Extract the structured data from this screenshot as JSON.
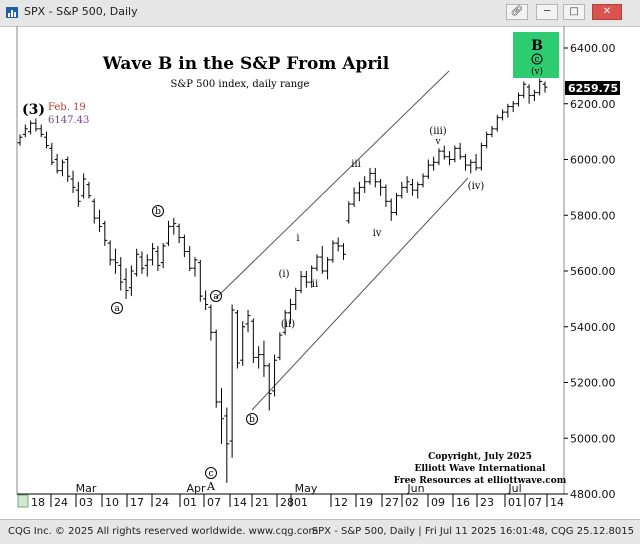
{
  "window": {
    "title": "SPX - S&P 500, Daily",
    "buttons": [
      "link-icon",
      "minimize",
      "maximize",
      "close"
    ]
  },
  "footer": {
    "left": "CQG Inc. © 2025 All rights reserved worldwide. www.cqg.com",
    "right": "SPX - S&P 500, Daily | Fri Jul 11 2025 16:01:48, CQG 25.12.8015"
  },
  "chart_data": {
    "type": "ohlc",
    "title": "Wave B in the S&P From April",
    "subtitle": "S&P 500 index, daily range",
    "ylim": [
      4800,
      6500
    ],
    "y_ticks": [
      "6400.00",
      "6200.00",
      "6000.00",
      "5800.00",
      "5600.00",
      "5400.00",
      "5200.00",
      "5000.00",
      "4800.00"
    ],
    "last_price": "6259.75",
    "x_day_labels": [
      "18",
      "24",
      "03",
      "10",
      "17",
      "24",
      "01",
      "07",
      "14",
      "21",
      "28",
      "01",
      "12",
      "19",
      "27",
      "02",
      "09",
      "16",
      "23",
      "01",
      "07",
      "14"
    ],
    "x_month_labels": [
      "Mar",
      "Apr",
      "May",
      "Jun",
      "Jul"
    ],
    "colors": {
      "bars": "#000000",
      "channel": "#555555",
      "last_price_bg": "#000000",
      "label_box": "#2ecc71",
      "feb_label": "#c0392b",
      "feb_value": "#7d3c98"
    },
    "annotations": {
      "wave3": "(3)",
      "feb_date": "Feb. 19",
      "feb_value": "6147.43",
      "a1": "a",
      "b1": "b",
      "c1": "c",
      "A": "A",
      "a2": "a",
      "b2": "b",
      "i_p": "(i)",
      "ii_p": "(ii)",
      "i_s": "i",
      "ii_s": "ii",
      "iii_s": "iii",
      "iv_s": "iv",
      "iii_p": "(iii)",
      "v_s": "v",
      "iv_p": "(iv)",
      "B": "B",
      "c_top": "c",
      "v_p": "(v)"
    },
    "copyright": [
      "Copyright, July 2025",
      "Elliott Wave International",
      "Free Resources at elliottwave.com"
    ],
    "ohlc": [
      [
        6060,
        6090,
        6050,
        6080
      ],
      [
        6090,
        6125,
        6080,
        6110
      ],
      [
        6100,
        6140,
        6090,
        6130
      ],
      [
        6130,
        6147,
        6100,
        6110
      ],
      [
        6110,
        6125,
        6080,
        6090
      ],
      [
        6080,
        6100,
        6040,
        6050
      ],
      [
        6040,
        6060,
        5980,
        5990
      ],
      [
        6000,
        6020,
        5950,
        5960
      ],
      [
        5960,
        6000,
        5940,
        5990
      ],
      [
        6000,
        6010,
        5920,
        5940
      ],
      [
        5930,
        5960,
        5880,
        5900
      ],
      [
        5890,
        5920,
        5830,
        5850
      ],
      [
        5870,
        5950,
        5860,
        5930
      ],
      [
        5910,
        5920,
        5860,
        5870
      ],
      [
        5850,
        5860,
        5770,
        5790
      ],
      [
        5790,
        5820,
        5740,
        5760
      ],
      [
        5770,
        5780,
        5690,
        5710
      ],
      [
        5700,
        5710,
        5620,
        5640
      ],
      [
        5640,
        5680,
        5590,
        5630
      ],
      [
        5620,
        5650,
        5530,
        5560
      ],
      [
        5570,
        5610,
        5500,
        5530
      ],
      [
        5540,
        5620,
        5510,
        5600
      ],
      [
        5590,
        5680,
        5580,
        5660
      ],
      [
        5650,
        5670,
        5590,
        5610
      ],
      [
        5620,
        5660,
        5580,
        5640
      ],
      [
        5640,
        5700,
        5620,
        5680
      ],
      [
        5670,
        5690,
        5600,
        5620
      ],
      [
        5630,
        5700,
        5610,
        5690
      ],
      [
        5700,
        5780,
        5690,
        5760
      ],
      [
        5760,
        5790,
        5730,
        5770
      ],
      [
        5760,
        5770,
        5700,
        5720
      ],
      [
        5720,
        5730,
        5650,
        5670
      ],
      [
        5670,
        5690,
        5600,
        5610
      ],
      [
        5610,
        5650,
        5580,
        5640
      ],
      [
        5630,
        5640,
        5490,
        5510
      ],
      [
        5500,
        5530,
        5460,
        5480
      ],
      [
        5470,
        5480,
        5350,
        5380
      ],
      [
        5380,
        5390,
        5110,
        5130
      ],
      [
        5130,
        5180,
        4980,
        5070
      ],
      [
        5080,
        5110,
        4840,
        4980
      ],
      [
        4990,
        5480,
        4930,
        5460
      ],
      [
        5450,
        5460,
        5250,
        5270
      ],
      [
        5280,
        5420,
        5260,
        5400
      ],
      [
        5410,
        5460,
        5380,
        5440
      ],
      [
        5420,
        5430,
        5270,
        5290
      ],
      [
        5290,
        5330,
        5250,
        5300
      ],
      [
        5300,
        5350,
        5220,
        5260
      ],
      [
        5260,
        5270,
        5100,
        5160
      ],
      [
        5170,
        5300,
        5150,
        5280
      ],
      [
        5290,
        5380,
        5280,
        5370
      ],
      [
        5380,
        5460,
        5370,
        5450
      ],
      [
        5450,
        5500,
        5410,
        5480
      ],
      [
        5480,
        5540,
        5460,
        5530
      ],
      [
        5530,
        5600,
        5520,
        5580
      ],
      [
        5580,
        5600,
        5540,
        5560
      ],
      [
        5560,
        5620,
        5540,
        5610
      ],
      [
        5610,
        5660,
        5600,
        5650
      ],
      [
        5650,
        5690,
        5590,
        5600
      ],
      [
        5600,
        5650,
        5570,
        5640
      ],
      [
        5640,
        5710,
        5630,
        5700
      ],
      [
        5700,
        5720,
        5670,
        5690
      ],
      [
        5690,
        5700,
        5640,
        5660
      ],
      [
        5780,
        5850,
        5770,
        5840
      ],
      [
        5840,
        5900,
        5830,
        5880
      ],
      [
        5880,
        5920,
        5850,
        5900
      ],
      [
        5900,
        5940,
        5880,
        5920
      ],
      [
        5920,
        5970,
        5910,
        5950
      ],
      [
        5950,
        5970,
        5900,
        5920
      ],
      [
        5920,
        5930,
        5870,
        5900
      ],
      [
        5900,
        5910,
        5830,
        5850
      ],
      [
        5850,
        5860,
        5780,
        5810
      ],
      [
        5810,
        5880,
        5800,
        5870
      ],
      [
        5870,
        5920,
        5860,
        5900
      ],
      [
        5900,
        5940,
        5880,
        5920
      ],
      [
        5910,
        5930,
        5870,
        5890
      ],
      [
        5890,
        5920,
        5860,
        5910
      ],
      [
        5910,
        5950,
        5900,
        5940
      ],
      [
        5940,
        6000,
        5930,
        5980
      ],
      [
        5980,
        6010,
        5960,
        5990
      ],
      [
        5990,
        6040,
        5980,
        6030
      ],
      [
        6030,
        6050,
        6000,
        6010
      ],
      [
        6010,
        6030,
        5980,
        6000
      ],
      [
        6000,
        6050,
        5990,
        6040
      ],
      [
        6040,
        6060,
        6000,
        6010
      ],
      [
        6010,
        6020,
        5960,
        5980
      ],
      [
        5980,
        6000,
        5950,
        5990
      ],
      [
        5990,
        6020,
        5960,
        5970
      ],
      [
        5970,
        6060,
        5960,
        6050
      ],
      [
        6050,
        6100,
        6040,
        6090
      ],
      [
        6090,
        6120,
        6080,
        6110
      ],
      [
        6110,
        6160,
        6100,
        6150
      ],
      [
        6150,
        6180,
        6140,
        6170
      ],
      [
        6170,
        6200,
        6150,
        6190
      ],
      [
        6190,
        6210,
        6170,
        6200
      ],
      [
        6200,
        6240,
        6190,
        6230
      ],
      [
        6230,
        6280,
        6220,
        6270
      ],
      [
        6260,
        6270,
        6200,
        6230
      ],
      [
        6230,
        6250,
        6210,
        6240
      ],
      [
        6240,
        6290,
        6230,
        6280
      ],
      [
        6270,
        6280,
        6240,
        6259.75
      ]
    ]
  }
}
